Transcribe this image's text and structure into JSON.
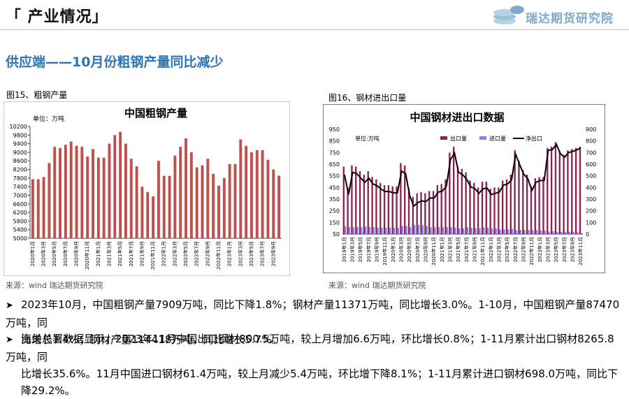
{
  "header": {
    "section_title": "「 产业情况」",
    "logo_text": "瑞达期货研究院"
  },
  "subtitle": "供应端——10月份粗钢产量同比减少",
  "figures": [
    {
      "label": "图15、粗钢产量",
      "source": "来源：wind   瑞达期货研究院"
    },
    {
      "label": "图16、钢材进出口量",
      "source": "来源：wind   瑞达期货研究院"
    }
  ],
  "bullets": [
    {
      "line1": "2023年10月，中国粗钢产量7909万吨，同比下降1.8%；钢材产量11371万吨，同比增长3.0%。1-10月，中国粗钢产量87470万吨，同",
      "line2": "比增长1.4%；钢材产量114418万吨，同比增长5.7%。"
    },
    {
      "line1": "海关总署数据显示，2023年11月中国出口钢材800.5万吨，较上月增加6.6万吨，环比增长0.8%；1-11月累计出口钢材8265.8万吨，同",
      "line2": "比增长35.6%。11月中国进口钢材61.4万吨，较上月减少5.4万吨，环比增下降8.1%；1-11月累计进口钢材698.0万吨，同比下降29.2%。"
    }
  ],
  "chart_data": [
    {
      "type": "bar",
      "title": "中国粗钢产量",
      "unit_label": "单位：万吨",
      "ylim": [
        5000,
        10200
      ],
      "yticks": [
        5000,
        5400,
        5800,
        6200,
        6600,
        7000,
        7400,
        7800,
        8200,
        8600,
        9000,
        9400,
        9800,
        10200
      ],
      "color": "#c0504d",
      "categories": [
        "2020年1月",
        "2020年2月",
        "2020年3月",
        "2020年4月",
        "2020年5月",
        "2020年6月",
        "2020年7月",
        "2020年8月",
        "2020年9月",
        "2020年10月",
        "2020年11月",
        "2020年12月",
        "2021年1月",
        "2021年2月",
        "2021年3月",
        "2021年4月",
        "2021年5月",
        "2021年6月",
        "2021年7月",
        "2021年8月",
        "2021年9月",
        "2021年10月",
        "2021年11月",
        "2021年12月",
        "2022年1月",
        "2022年2月",
        "2022年3月",
        "2022年4月",
        "2022年5月",
        "2022年6月",
        "2022年7月",
        "2022年8月",
        "2022年9月",
        "2022年10月",
        "2022年11月",
        "2022年12月",
        "2023年1月",
        "2023年2月",
        "2023年3月",
        "2023年4月",
        "2023年5月",
        "2023年6月",
        "2023年7月",
        "2023年8月",
        "2023年9月",
        "2023年10月"
      ],
      "tick_labels": [
        "2020年1月",
        "2020年3月",
        "2020年5月",
        "2020年7月",
        "2020年9月",
        "2020年11月",
        "2021年1月",
        "2021年3月",
        "2021年5月",
        "2021年7月",
        "2021年9月",
        "2021年11月",
        "2022年1月",
        "2022年3月",
        "2022年5月",
        "2022年7月",
        "2022年9月",
        "2022年11月",
        "2023年1月",
        "2023年3月",
        "2023年5月",
        "2023年7月",
        "2023年9月"
      ],
      "values": [
        7750,
        7750,
        7850,
        8500,
        9250,
        9200,
        9350,
        9500,
        9300,
        9250,
        8800,
        9150,
        8750,
        8750,
        9400,
        9800,
        9950,
        9400,
        8700,
        8350,
        7400,
        7150,
        6950,
        8600,
        7900,
        7900,
        8850,
        9250,
        9650,
        9000,
        8300,
        8400,
        8700,
        8000,
        7450,
        7800,
        8450,
        8450,
        9600,
        9300,
        9000,
        9100,
        9100,
        8650,
        8200,
        7909
      ]
    },
    {
      "type": "bar+line",
      "title": "中国钢材进出口数据",
      "unit_label": "单位:万吨",
      "ylim_left": [
        50,
        950
      ],
      "yticks_left": [
        50,
        150,
        250,
        350,
        450,
        550,
        650,
        750,
        850,
        950
      ],
      "ylim_right": [
        0,
        900
      ],
      "yticks_right": [
        0,
        100,
        200,
        300,
        400,
        500,
        600,
        700,
        800,
        900
      ],
      "legend": [
        "出口量",
        "进口量",
        "净出口"
      ],
      "colors": {
        "export": "#8b2252",
        "import": "#8080ff",
        "net": "#000000"
      },
      "categories": [
        "2019年1月",
        "2019年2月",
        "2019年3月",
        "2019年4月",
        "2019年5月",
        "2019年6月",
        "2019年7月",
        "2019年8月",
        "2019年9月",
        "2019年10月",
        "2019年11月",
        "2019年12月",
        "2020年1月",
        "2020年2月",
        "2020年3月",
        "2020年4月",
        "2020年5月",
        "2020年6月",
        "2020年7月",
        "2020年8月",
        "2020年9月",
        "2020年10月",
        "2020年11月",
        "2020年12月",
        "2021年1月",
        "2021年2月",
        "2021年3月",
        "2021年4月",
        "2021年5月",
        "2021年6月",
        "2021年7月",
        "2021年8月",
        "2021年9月",
        "2021年10月",
        "2021年11月",
        "2021年12月",
        "2022年1月",
        "2022年2月",
        "2022年3月",
        "2022年4月",
        "2022年5月",
        "2022年6月",
        "2022年7月",
        "2022年8月",
        "2022年9月",
        "2022年10月",
        "2022年11月",
        "2022年12月",
        "2023年1月",
        "2023年2月",
        "2023年3月",
        "2023年4月",
        "2023年5月",
        "2023年6月",
        "2023年7月",
        "2023年8月",
        "2023年9月",
        "2023年10月",
        "2023年11月"
      ],
      "tick_labels": [
        "2019年1月",
        "2019年3月",
        "2019年5月",
        "2019年7月",
        "2019年9月",
        "2019年11月",
        "2020年1月",
        "2020年3月",
        "2020年5月",
        "2020年7月",
        "2020年9月",
        "2020年11月",
        "2021年1月",
        "2021年3月",
        "2021年5月",
        "2021年7月",
        "2021年9月",
        "2021年11月",
        "2022年1月",
        "2022年3月",
        "2022年5月",
        "2022年7月",
        "2022年9月",
        "2022年11月",
        "2023年1月",
        "2023年3月",
        "2023年5月",
        "2023年7月",
        "2023年9月",
        "2023年11月"
      ],
      "export": [
        630,
        450,
        640,
        630,
        590,
        560,
        590,
        540,
        520,
        490,
        470,
        470,
        460,
        460,
        660,
        640,
        440,
        370,
        400,
        410,
        400,
        420,
        420,
        470,
        480,
        520,
        750,
        800,
        630,
        610,
        580,
        510,
        490,
        450,
        500,
        500,
        440,
        450,
        450,
        510,
        520,
        560,
        770,
        680,
        600,
        560,
        460,
        530,
        540,
        540,
        790,
        800,
        840,
        760,
        730,
        770,
        780,
        790,
        800
      ],
      "import": [
        120,
        110,
        110,
        110,
        110,
        115,
        110,
        110,
        105,
        105,
        105,
        105,
        105,
        105,
        120,
        120,
        110,
        130,
        130,
        125,
        120,
        110,
        110,
        110,
        110,
        110,
        110,
        105,
        100,
        100,
        110,
        105,
        100,
        100,
        110,
        105,
        100,
        100,
        90,
        90,
        90,
        95,
        85,
        85,
        85,
        85,
        85,
        85,
        80,
        80,
        70,
        75,
        70,
        70,
        70,
        70,
        70,
        67,
        61
      ]
    }
  ]
}
